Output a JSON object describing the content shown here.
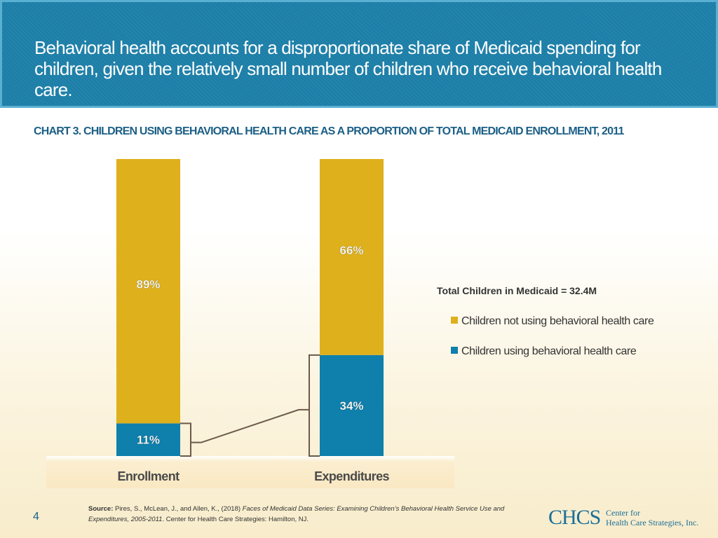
{
  "header": {
    "title": "Behavioral health accounts for a disproportionate share of Medicaid spending for children, given the relatively small number of children who receive behavioral health care."
  },
  "chart_data": {
    "type": "bar",
    "stacked": true,
    "percent": true,
    "title": "CHART 3. CHILDREN USING BEHAVIORAL HEALTH CARE AS A PROPORTION OF TOTAL MEDICAID ENROLLMENT, 2011",
    "categories": [
      "Enrollment",
      "Expenditures"
    ],
    "series": [
      {
        "name": "Children using behavioral health care",
        "values": [
          11,
          34
        ],
        "labels": [
          "11%",
          "34%"
        ],
        "color": "#0f7fab"
      },
      {
        "name": "Children not using behavioral health care",
        "values": [
          89,
          66
        ],
        "labels": [
          "89%",
          "66%"
        ],
        "color": "#deb01b"
      }
    ],
    "ylim": [
      0,
      100
    ],
    "xlabel": "",
    "ylabel": "",
    "annotation": "Total Children in Medicaid = 32.4M"
  },
  "legend": {
    "total": "Total Children in Medicaid = 32.4M",
    "items": [
      {
        "label": "Children not using behavioral health care",
        "color": "#deb01b"
      },
      {
        "label": "Children using behavioral health care",
        "color": "#0f7fab"
      }
    ]
  },
  "footer": {
    "page_number": "4",
    "source_label": "Source:",
    "source_authors": "Pires, S., McLean, J., and Allen, K., (2018)",
    "source_title": "Faces of Medicaid Data Series: Examining Children’s Behavioral Health Service Use and Expenditures, 2005-2011",
    "source_publisher": ". Center for Health Care Strategies: Hamilton, NJ."
  },
  "logo": {
    "main": "CHCS",
    "line1": "Center for",
    "line2": "Health Care Strategies, Inc."
  },
  "colors": {
    "header_bg": "#1d7fa8",
    "accent": "#1b5f86"
  }
}
